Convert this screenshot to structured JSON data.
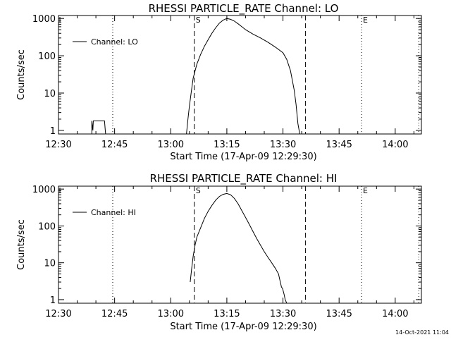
{
  "footer": {
    "timestamp": "14-Oct-2021 11:04"
  },
  "chart_data": [
    {
      "type": "line",
      "title": "RHESSI PARTICLE_RATE Channel: LO",
      "xlabel": "Start Time (17-Apr-09 12:29:30)",
      "ylabel": "Counts/sec",
      "y_scale": "log",
      "ylim": [
        0.8,
        1200
      ],
      "y_ticks": [
        {
          "value": 1,
          "label": "1"
        },
        {
          "value": 10,
          "label": "10"
        },
        {
          "value": 100,
          "label": "100"
        },
        {
          "value": 1000,
          "label": "1000"
        }
      ],
      "xlim_minutes": [
        0,
        97
      ],
      "x_ticks": [
        {
          "value": 0,
          "label": "12:30"
        },
        {
          "value": 15,
          "label": "12:45"
        },
        {
          "value": 30,
          "label": "13:00"
        },
        {
          "value": 45,
          "label": "13:15"
        },
        {
          "value": 60,
          "label": "13:30"
        },
        {
          "value": 75,
          "label": "13:45"
        },
        {
          "value": 90,
          "label": "14:00"
        }
      ],
      "grid": false,
      "legend": {
        "placement": "top-left",
        "entries": [
          "Channel: LO"
        ]
      },
      "markers": [
        {
          "minute": 14.5,
          "style": "dotted",
          "label": ""
        },
        {
          "minute": 36.3,
          "style": "dashed",
          "label": "S"
        },
        {
          "minute": 66.0,
          "style": "dashed",
          "label": ""
        },
        {
          "minute": 81.0,
          "style": "dotted",
          "label": "E"
        },
        {
          "minute": 96.3,
          "style": "dotted",
          "label": ""
        }
      ],
      "series": [
        {
          "name": "Channel: LO",
          "segments": [
            {
              "x": [
                8.9,
                8.9,
                9.2,
                9.3,
                9.5,
                12.0,
                12.3,
                12.5,
                12.6
              ],
              "y": [
                0.8,
                1.8,
                1.0,
                1.8,
                1.8,
                1.8,
                1.8,
                1.0,
                0.8
              ]
            },
            {
              "x": [
                34.2,
                34.6,
                35.0,
                35.5,
                36.0,
                37.0,
                38.0,
                39.0,
                40.0,
                41.0,
                42.0,
                43.0,
                44.0,
                45.0,
                46.0,
                47.0,
                48.0,
                49.0,
                50.0,
                52.0,
                54.0,
                56.0,
                58.0,
                60.0,
                61.0,
                62.0,
                63.0,
                63.5,
                64.0,
                64.5
              ],
              "y": [
                0.8,
                2.0,
                4.5,
                11,
                25,
                60,
                110,
                180,
                270,
                400,
                560,
                750,
                900,
                1000,
                950,
                850,
                720,
                600,
                500,
                380,
                300,
                230,
                170,
                120,
                80,
                40,
                12,
                5,
                1.5,
                0.8
              ]
            }
          ]
        }
      ]
    },
    {
      "type": "line",
      "title": "RHESSI PARTICLE_RATE Channel: HI",
      "xlabel": "Start Time (17-Apr-09 12:29:30)",
      "ylabel": "Counts/sec",
      "y_scale": "log",
      "ylim": [
        0.8,
        1200
      ],
      "y_ticks": [
        {
          "value": 1,
          "label": "1"
        },
        {
          "value": 10,
          "label": "10"
        },
        {
          "value": 100,
          "label": "100"
        },
        {
          "value": 1000,
          "label": "1000"
        }
      ],
      "xlim_minutes": [
        0,
        97
      ],
      "x_ticks": [
        {
          "value": 0,
          "label": "12:30"
        },
        {
          "value": 15,
          "label": "12:45"
        },
        {
          "value": 30,
          "label": "13:00"
        },
        {
          "value": 45,
          "label": "13:15"
        },
        {
          "value": 60,
          "label": "13:30"
        },
        {
          "value": 75,
          "label": "13:45"
        },
        {
          "value": 90,
          "label": "14:00"
        }
      ],
      "grid": false,
      "legend": {
        "placement": "top-left",
        "entries": [
          "Channel: HI"
        ]
      },
      "markers": [
        {
          "minute": 14.5,
          "style": "dotted",
          "label": ""
        },
        {
          "minute": 36.3,
          "style": "dashed",
          "label": "S"
        },
        {
          "minute": 66.0,
          "style": "dashed",
          "label": ""
        },
        {
          "minute": 81.0,
          "style": "dotted",
          "label": "E"
        },
        {
          "minute": 96.3,
          "style": "dotted",
          "label": ""
        }
      ],
      "series": [
        {
          "name": "Channel: HI",
          "segments": [
            {
              "x": [
                35.2,
                35.6,
                36.0,
                36.5,
                37.0,
                38.0,
                39.0,
                40.0,
                41.0,
                42.0,
                43.0,
                44.0,
                45.0,
                46.0,
                47.0,
                48.0,
                49.0,
                50.0,
                51.0,
                52.0,
                53.0,
                54.0,
                55.0,
                56.0,
                57.0,
                58.0,
                58.8,
                59.3,
                59.6,
                59.9,
                60.3,
                60.6,
                61.0
              ],
              "y": [
                3.0,
                7.0,
                15,
                30,
                50,
                90,
                160,
                250,
                360,
                500,
                630,
                720,
                760,
                700,
                560,
                400,
                260,
                170,
                110,
                70,
                45,
                30,
                20,
                14,
                10,
                7,
                5,
                3,
                2.2,
                2.0,
                1.4,
                1.0,
                0.8
              ]
            }
          ]
        }
      ]
    }
  ]
}
